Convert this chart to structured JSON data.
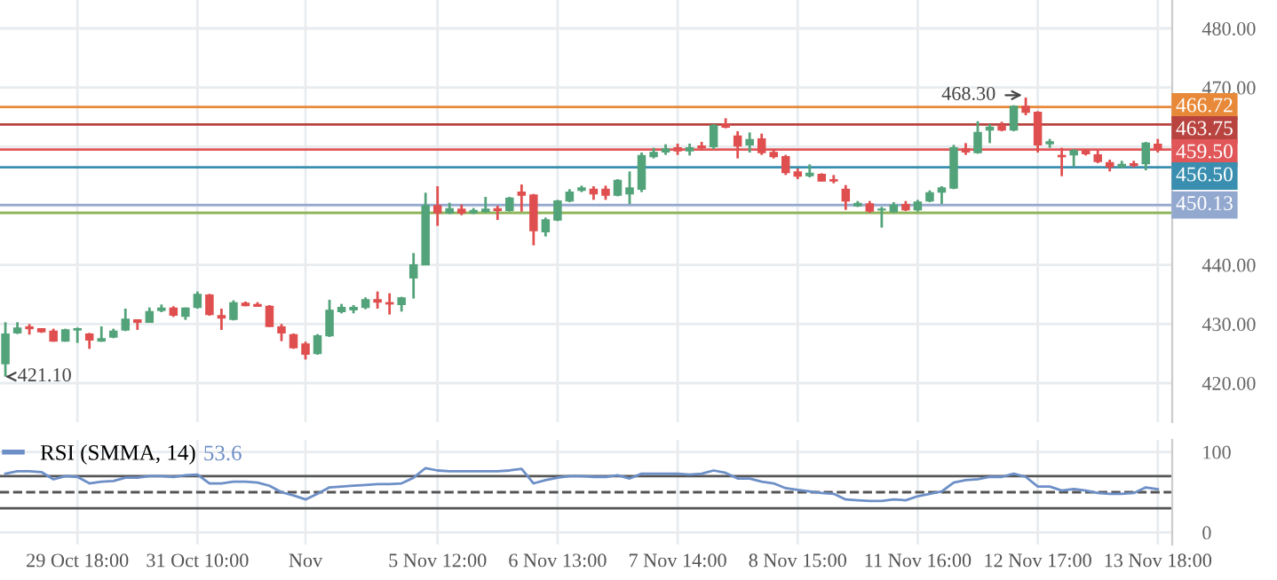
{
  "chart_data": [
    {
      "type": "candlestick",
      "categories": [
        null,
        null,
        null,
        null,
        null,
        null,
        null,
        null,
        null,
        null,
        null,
        null,
        null,
        null,
        null,
        null,
        null,
        null,
        null,
        null,
        null,
        null,
        null,
        null,
        null,
        null,
        null,
        null,
        null,
        null,
        null,
        null,
        null,
        null,
        null,
        null,
        null,
        null,
        null,
        null,
        null,
        null,
        null,
        null,
        null,
        null,
        null,
        null,
        null,
        null,
        null,
        null,
        null,
        null,
        null,
        null,
        null,
        null,
        null,
        null,
        null,
        null,
        null,
        null,
        null,
        null,
        null,
        null,
        null,
        null,
        null,
        null,
        null,
        null,
        null,
        null,
        null,
        null,
        null,
        null,
        null,
        null,
        null,
        null,
        null,
        null,
        null,
        null,
        null,
        null,
        null,
        null,
        null,
        null,
        null,
        null,
        null
      ],
      "ohlc": [
        [
          423.3,
          430.3,
          421.1,
          428.3
        ],
        [
          428.5,
          430.3,
          428.3,
          429.3
        ],
        [
          429.5,
          430.0,
          428.2,
          429.2
        ],
        [
          429.2,
          429.3,
          428.5,
          428.7
        ],
        [
          428.8,
          429.2,
          427.0,
          427.1
        ],
        [
          427.1,
          429.2,
          427.0,
          429.0
        ],
        [
          429.0,
          429.4,
          426.8,
          429.2
        ],
        [
          428.3,
          428.5,
          425.8,
          427.3
        ],
        [
          427.1,
          429.6,
          427.0,
          427.5
        ],
        [
          427.8,
          429.2,
          427.6,
          428.8
        ],
        [
          429.0,
          432.6,
          428.8,
          430.8
        ],
        [
          430.7,
          430.8,
          429.0,
          430.3
        ],
        [
          430.3,
          432.8,
          430.2,
          432.1
        ],
        [
          432.3,
          433.3,
          432.0,
          432.7
        ],
        [
          432.7,
          433.0,
          431.2,
          431.5
        ],
        [
          431.3,
          432.8,
          430.7,
          432.7
        ],
        [
          432.8,
          435.5,
          432.6,
          435.0
        ],
        [
          434.9,
          435.1,
          431.4,
          431.6
        ],
        [
          431.4,
          432.6,
          429.0,
          431.0
        ],
        [
          430.8,
          434.0,
          430.6,
          433.6
        ],
        [
          433.5,
          433.8,
          433.0,
          433.1
        ],
        [
          433.3,
          433.7,
          433.0,
          433.0
        ],
        [
          433.0,
          433.2,
          429.5,
          429.6
        ],
        [
          429.5,
          430.0,
          427.1,
          428.5
        ],
        [
          428.2,
          428.4,
          425.8,
          426.0
        ],
        [
          426.6,
          427.0,
          424.0,
          424.9
        ],
        [
          425.0,
          428.3,
          424.8,
          428.0
        ],
        [
          428.0,
          434.1,
          427.8,
          432.3
        ],
        [
          432.1,
          433.4,
          431.8,
          432.8
        ],
        [
          432.4,
          433.2,
          431.8,
          432.8
        ],
        [
          432.8,
          434.5,
          432.5,
          434.1
        ],
        [
          434.1,
          435.5,
          432.6,
          433.7
        ],
        [
          433.6,
          435.2,
          431.6,
          433.4
        ],
        [
          433.3,
          434.6,
          432.1,
          434.4
        ],
        [
          437.8,
          442.0,
          434.3,
          440.0
        ],
        [
          440.0,
          452.2,
          440.0,
          450.0
        ],
        [
          450.0,
          453.3,
          446.6,
          448.8
        ],
        [
          448.8,
          450.5,
          448.6,
          449.5
        ],
        [
          449.4,
          450.2,
          448.4,
          448.8
        ],
        [
          448.8,
          449.6,
          448.6,
          449.2
        ],
        [
          449.0,
          451.5,
          448.8,
          449.4
        ],
        [
          449.5,
          450.0,
          447.6,
          449.2
        ],
        [
          449.2,
          451.5,
          449.0,
          451.3
        ],
        [
          452.3,
          453.6,
          449.0,
          451.8
        ],
        [
          451.8,
          452.0,
          443.3,
          445.8
        ],
        [
          445.6,
          448.0,
          444.8,
          447.6
        ],
        [
          447.6,
          451.0,
          447.4,
          450.8
        ],
        [
          450.8,
          452.8,
          450.6,
          452.3
        ],
        [
          452.6,
          453.4,
          452.3,
          453.0
        ],
        [
          452.8,
          453.3,
          451.0,
          452.0
        ],
        [
          452.8,
          453.4,
          451.0,
          451.8
        ],
        [
          451.8,
          454.5,
          451.6,
          454.3
        ],
        [
          452.0,
          455.8,
          450.3,
          453.0
        ],
        [
          452.8,
          459.0,
          452.3,
          458.5
        ],
        [
          458.3,
          459.8,
          458.0,
          459.0
        ],
        [
          459.1,
          460.4,
          458.6,
          459.6
        ],
        [
          459.8,
          460.5,
          458.6,
          459.3
        ],
        [
          459.3,
          460.5,
          458.5,
          459.8
        ],
        [
          460.1,
          460.8,
          459.3,
          459.8
        ],
        [
          460.0,
          463.8,
          459.6,
          463.6
        ],
        [
          463.8,
          464.8,
          463.1,
          463.3
        ],
        [
          461.8,
          462.6,
          458.0,
          460.1
        ],
        [
          460.3,
          462.4,
          459.0,
          461.2
        ],
        [
          461.3,
          462.2,
          458.6,
          459.0
        ],
        [
          459.0,
          459.6,
          458.0,
          458.3
        ],
        [
          458.3,
          458.6,
          455.2,
          455.6
        ],
        [
          455.7,
          456.3,
          454.5,
          455.0
        ],
        [
          455.1,
          457.0,
          454.8,
          455.5
        ],
        [
          455.3,
          455.5,
          454.1,
          454.2
        ],
        [
          454.4,
          455.2,
          453.8,
          454.2
        ],
        [
          452.8,
          453.5,
          449.3,
          450.8
        ],
        [
          450.0,
          450.8,
          449.8,
          450.4
        ],
        [
          450.3,
          450.8,
          448.8,
          449.1
        ],
        [
          449.3,
          449.8,
          446.3,
          449.4
        ],
        [
          449.0,
          450.6,
          448.8,
          450.1
        ],
        [
          450.2,
          450.8,
          449.1,
          449.3
        ],
        [
          449.3,
          451.0,
          449.0,
          450.6
        ],
        [
          450.8,
          452.6,
          450.6,
          452.2
        ],
        [
          452.3,
          453.3,
          450.3,
          453.0
        ],
        [
          453.0,
          460.3,
          452.8,
          459.8
        ],
        [
          459.6,
          460.6,
          458.6,
          459.1
        ],
        [
          459.0,
          464.3,
          458.8,
          462.4
        ],
        [
          462.8,
          463.8,
          460.6,
          463.3
        ],
        [
          463.5,
          464.2,
          462.6,
          462.8
        ],
        [
          462.8,
          467.0,
          462.6,
          466.8
        ],
        [
          466.8,
          468.3,
          465.3,
          465.8
        ],
        [
          465.8,
          466.0,
          459.0,
          460.3
        ],
        [
          460.5,
          461.3,
          459.8,
          460.8
        ],
        [
          458.5,
          459.8,
          455.0,
          458.3
        ],
        [
          458.6,
          459.6,
          456.6,
          459.3
        ],
        [
          459.2,
          459.6,
          458.5,
          458.8
        ],
        [
          458.6,
          459.3,
          457.2,
          457.5
        ],
        [
          457.3,
          457.8,
          455.8,
          456.6
        ],
        [
          456.6,
          457.6,
          456.4,
          457.0
        ],
        [
          457.1,
          457.6,
          456.5,
          456.8
        ],
        [
          457.1,
          460.8,
          456.0,
          460.6
        ],
        [
          460.4,
          461.3,
          459.0,
          459.5
        ]
      ],
      "colors": [
        "#53a37a",
        "#53a37a",
        "#e04f4f",
        "#e04f4f",
        "#e04f4f",
        "#53a37a",
        "#53a37a",
        "#e04f4f",
        "#53a37a",
        "#53a37a",
        "#53a37a",
        "#e04f4f",
        "#53a37a",
        "#53a37a",
        "#e04f4f",
        "#53a37a",
        "#53a37a",
        "#e04f4f",
        "#e04f4f",
        "#53a37a",
        "#e04f4f",
        "#e04f4f",
        "#e04f4f",
        "#e04f4f",
        "#e04f4f",
        "#e04f4f",
        "#53a37a",
        "#53a37a",
        "#53a37a",
        "#53a37a",
        "#53a37a",
        "#e04f4f",
        "#e04f4f",
        "#53a37a",
        "#53a37a",
        "#53a37a",
        "#e04f4f",
        "#53a37a",
        "#e04f4f",
        "#53a37a",
        "#53a37a",
        "#e04f4f",
        "#53a37a",
        "#e04f4f",
        "#e04f4f",
        "#53a37a",
        "#53a37a",
        "#53a37a",
        "#53a37a",
        "#e04f4f",
        "#e04f4f",
        "#53a37a",
        "#53a37a",
        "#53a37a",
        "#53a37a",
        "#53a37a",
        "#e04f4f",
        "#53a37a",
        "#e04f4f",
        "#53a37a",
        "#e04f4f",
        "#e04f4f",
        "#53a37a",
        "#e04f4f",
        "#e04f4f",
        "#e04f4f",
        "#e04f4f",
        "#53a37a",
        "#e04f4f",
        "#e04f4f",
        "#e04f4f",
        "#53a37a",
        "#e04f4f",
        "#53a37a",
        "#53a37a",
        "#e04f4f",
        "#53a37a",
        "#53a37a",
        "#53a37a",
        "#53a37a",
        "#e04f4f",
        "#53a37a",
        "#53a37a",
        "#e04f4f",
        "#53a37a",
        "#e04f4f",
        "#e04f4f",
        "#53a37a",
        "#e04f4f",
        "#53a37a",
        "#e04f4f",
        "#e04f4f",
        "#e04f4f",
        "#53a37a",
        "#e04f4f",
        "#53a37a",
        "#e04f4f"
      ],
      "ylim": [
        413.4,
        484.8
      ],
      "yticks": [
        {
          "value": 420,
          "label": "420.00"
        },
        {
          "value": 430,
          "label": "430.00"
        },
        {
          "value": 440,
          "label": "440.00"
        },
        {
          "value": 450,
          "label": null
        },
        {
          "value": 460,
          "label": null
        },
        {
          "value": 470,
          "label": "470.00"
        },
        {
          "value": 480,
          "label": "480.00"
        }
      ],
      "grid": true,
      "tick_labels": "y",
      "ref_lines": [
        {
          "axis": "y",
          "value": 466.72,
          "label": "466.72",
          "color": "#e8893a"
        },
        {
          "axis": "y",
          "value": 463.75,
          "label": "463.75",
          "color": "#b8433f"
        },
        {
          "axis": "y",
          "value": 459.5,
          "label": "459.50",
          "color": "#e15759"
        },
        {
          "axis": "y",
          "value": 456.5,
          "label": "456.50",
          "color": "#3a8fb0"
        },
        {
          "axis": "y",
          "value": 450.13,
          "label": "450.13",
          "color": "#93a8cf"
        },
        {
          "axis": "y",
          "value": 448.8,
          "label": null,
          "color": "#8fb55a"
        }
      ],
      "annotations": [
        "421.10",
        "468.30"
      ]
    },
    {
      "type": "line",
      "categories": [
        null,
        null,
        null,
        null,
        null,
        null,
        "29 Oct 18:00",
        null,
        null,
        null,
        null,
        null,
        null,
        null,
        null,
        null,
        "31 Oct 10:00",
        null,
        null,
        null,
        null,
        null,
        null,
        null,
        null,
        "Nov",
        null,
        null,
        null,
        null,
        null,
        null,
        null,
        null,
        null,
        null,
        "5 Nov 12:00",
        null,
        null,
        null,
        null,
        null,
        null,
        null,
        null,
        null,
        "6 Nov 13:00",
        null,
        null,
        null,
        null,
        null,
        null,
        null,
        null,
        null,
        "7 Nov 14:00",
        null,
        null,
        null,
        null,
        null,
        null,
        null,
        null,
        null,
        "8 Nov 15:00",
        null,
        null,
        null,
        null,
        null,
        null,
        null,
        null,
        null,
        "11 Nov 16:00",
        null,
        null,
        null,
        null,
        null,
        null,
        null,
        null,
        null,
        "12 Nov 17:00",
        null,
        null,
        null,
        null,
        null,
        null,
        null,
        null,
        null,
        "13 Nov 18:00"
      ],
      "series": [
        {
          "name": "RSI (SMMA, 14)",
          "color": "#6d8fc7",
          "values": [
            73,
            76,
            76,
            75,
            66,
            70,
            69,
            61,
            63,
            64,
            68,
            68,
            70,
            70,
            69,
            71,
            72,
            61,
            61,
            63,
            63,
            62,
            58,
            50,
            46,
            41,
            48,
            56,
            57,
            58,
            59,
            60,
            60,
            61,
            68,
            80,
            77,
            76,
            76,
            76,
            76,
            76,
            77,
            79,
            61,
            65,
            68,
            70,
            70,
            69,
            69,
            71,
            67,
            73,
            73,
            73,
            73,
            72,
            73,
            77,
            74,
            67,
            67,
            63,
            61,
            55,
            53,
            51,
            49,
            48,
            41,
            40,
            39,
            39,
            41,
            40,
            45,
            48,
            51,
            62,
            65,
            66,
            69,
            69,
            73,
            69,
            57,
            57,
            52,
            54,
            52,
            49,
            48,
            48,
            49,
            56,
            53.6
          ]
        }
      ],
      "ylim": [
        -15,
        115
      ],
      "yticks": [
        0,
        100
      ],
      "grid": true,
      "legend": "top left",
      "ref_lines": [
        {
          "axis": "y",
          "value": 70,
          "color": "#555555",
          "line_style": "solid"
        },
        {
          "axis": "y",
          "value": 50,
          "color": "#555555",
          "line_style": "dashed"
        },
        {
          "axis": "y",
          "value": 30,
          "color": "#555555",
          "line_style": "solid"
        }
      ],
      "annotations": [
        "53.6"
      ]
    }
  ]
}
